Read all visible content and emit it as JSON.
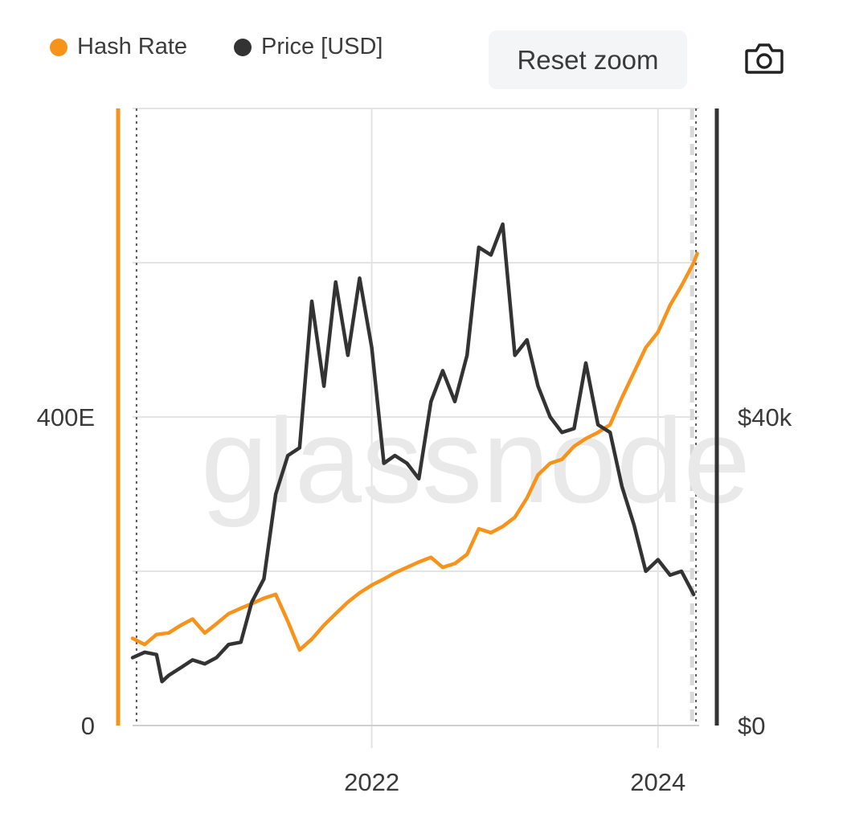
{
  "legend": {
    "series1": {
      "label": "Hash Rate",
      "color": "#F7931A"
    },
    "series2": {
      "label": "Price [USD]",
      "color": "#333333"
    }
  },
  "toolbar": {
    "reset_label": "Reset zoom",
    "export_icon": "camera-icon"
  },
  "watermark": "glassnode",
  "chart_data": {
    "type": "line",
    "x_range": [
      "2020-05-01",
      "2024-04-15"
    ],
    "x_ticks": [
      "2022",
      "2024"
    ],
    "y_left": {
      "ticks": [
        "0",
        "400E"
      ],
      "range": [
        0,
        800
      ],
      "unit": "EH/s",
      "color": "#F7931A"
    },
    "y_right": {
      "ticks": [
        "$0",
        "$40k"
      ],
      "range": [
        0,
        80000
      ],
      "color": "#333333"
    },
    "grid": true,
    "series": [
      {
        "name": "Hash Rate",
        "axis": "left",
        "color": "#F7931A",
        "points": [
          [
            "2020-05-01",
            113
          ],
          [
            "2020-06-01",
            105
          ],
          [
            "2020-07-01",
            118
          ],
          [
            "2020-08-01",
            120
          ],
          [
            "2020-09-01",
            130
          ],
          [
            "2020-10-01",
            138
          ],
          [
            "2020-11-01",
            120
          ],
          [
            "2020-12-01",
            132
          ],
          [
            "2021-01-01",
            145
          ],
          [
            "2021-02-01",
            152
          ],
          [
            "2021-03-01",
            158
          ],
          [
            "2021-04-01",
            165
          ],
          [
            "2021-05-01",
            170
          ],
          [
            "2021-06-01",
            135
          ],
          [
            "2021-07-01",
            98
          ],
          [
            "2021-08-01",
            112
          ],
          [
            "2021-09-01",
            130
          ],
          [
            "2021-10-01",
            145
          ],
          [
            "2021-11-01",
            160
          ],
          [
            "2021-12-01",
            172
          ],
          [
            "2022-01-01",
            182
          ],
          [
            "2022-02-01",
            190
          ],
          [
            "2022-03-01",
            198
          ],
          [
            "2022-04-01",
            205
          ],
          [
            "2022-05-01",
            212
          ],
          [
            "2022-06-01",
            218
          ],
          [
            "2022-07-01",
            205
          ],
          [
            "2022-08-01",
            210
          ],
          [
            "2022-09-01",
            222
          ],
          [
            "2022-10-01",
            255
          ],
          [
            "2022-11-01",
            250
          ],
          [
            "2022-12-01",
            258
          ],
          [
            "2023-01-01",
            270
          ],
          [
            "2023-02-01",
            295
          ],
          [
            "2023-03-01",
            325
          ],
          [
            "2023-04-01",
            340
          ],
          [
            "2023-05-01",
            345
          ],
          [
            "2023-06-01",
            362
          ],
          [
            "2023-07-01",
            372
          ],
          [
            "2023-08-01",
            380
          ],
          [
            "2023-09-01",
            390
          ],
          [
            "2023-10-01",
            425
          ],
          [
            "2023-11-01",
            458
          ],
          [
            "2023-12-01",
            490
          ],
          [
            "2024-01-01",
            510
          ],
          [
            "2024-02-01",
            545
          ],
          [
            "2024-03-01",
            570
          ],
          [
            "2024-04-01",
            600
          ],
          [
            "2024-04-10",
            612
          ]
        ]
      },
      {
        "name": "Price [USD]",
        "axis": "right",
        "color": "#333333",
        "points": [
          [
            "2020-05-01",
            8800
          ],
          [
            "2020-06-01",
            9500
          ],
          [
            "2020-07-01",
            9200
          ],
          [
            "2020-07-15",
            5700
          ],
          [
            "2020-08-01",
            6500
          ],
          [
            "2020-09-01",
            7500
          ],
          [
            "2020-10-01",
            8500
          ],
          [
            "2020-11-01",
            8000
          ],
          [
            "2020-12-01",
            8800
          ],
          [
            "2021-01-01",
            10500
          ],
          [
            "2021-02-01",
            10800
          ],
          [
            "2021-03-01",
            16000
          ],
          [
            "2021-04-01",
            19000
          ],
          [
            "2021-05-01",
            30000
          ],
          [
            "2021-06-01",
            35000
          ],
          [
            "2021-07-01",
            36000
          ],
          [
            "2021-08-01",
            55000
          ],
          [
            "2021-09-01",
            44000
          ],
          [
            "2021-10-01",
            57500
          ],
          [
            "2021-11-01",
            48000
          ],
          [
            "2021-12-01",
            58000
          ],
          [
            "2022-01-01",
            49000
          ],
          [
            "2022-02-01",
            34000
          ],
          [
            "2022-03-01",
            35000
          ],
          [
            "2022-04-01",
            34000
          ],
          [
            "2022-05-01",
            32000
          ],
          [
            "2022-06-01",
            42000
          ],
          [
            "2022-07-01",
            46000
          ],
          [
            "2022-08-01",
            42000
          ],
          [
            "2022-09-01",
            48000
          ],
          [
            "2022-10-01",
            62000
          ],
          [
            "2022-11-01",
            61000
          ],
          [
            "2022-12-01",
            65000
          ],
          [
            "2023-01-01",
            48000
          ],
          [
            "2023-02-01",
            50000
          ],
          [
            "2023-03-01",
            44000
          ],
          [
            "2023-04-01",
            40000
          ],
          [
            "2023-05-01",
            38000
          ],
          [
            "2023-06-01",
            38500
          ],
          [
            "2023-07-01",
            47000
          ],
          [
            "2023-08-01",
            39000
          ],
          [
            "2023-09-01",
            38000
          ],
          [
            "2023-10-01",
            31000
          ],
          [
            "2023-11-01",
            26000
          ],
          [
            "2023-12-01",
            20000
          ],
          [
            "2024-01-01",
            21500
          ],
          [
            "2024-02-01",
            19500
          ],
          [
            "2024-03-01",
            20000
          ],
          [
            "2024-04-01",
            17000
          ]
        ]
      }
    ]
  }
}
